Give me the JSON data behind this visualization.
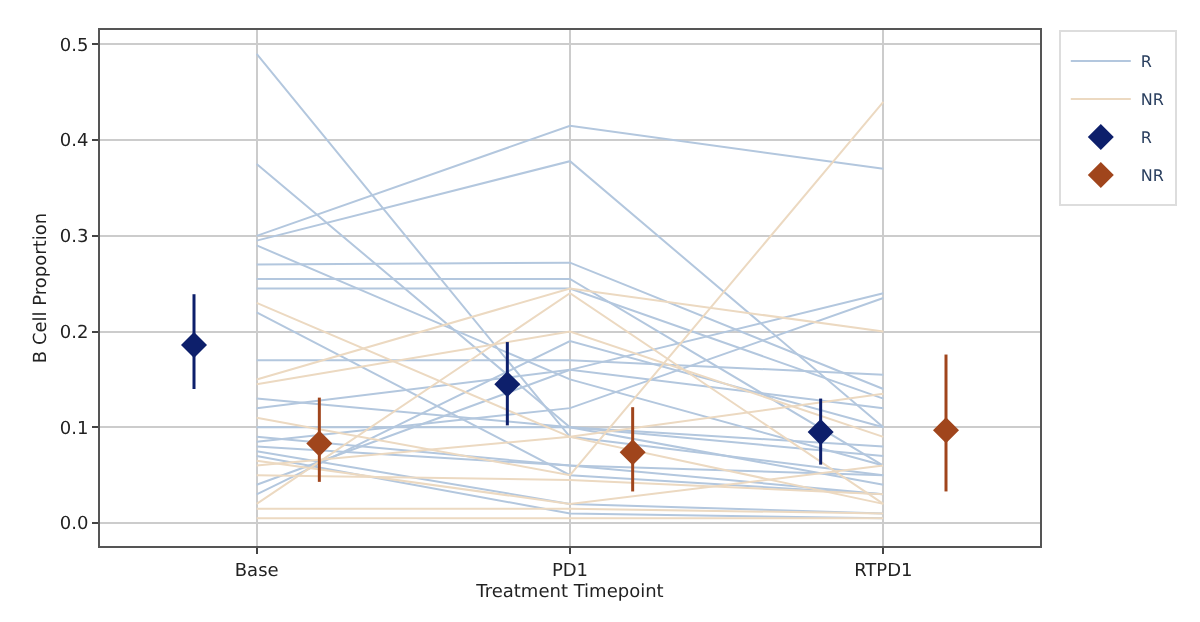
{
  "chart_data": {
    "type": "line",
    "xlabel": "Treatment Timepoint",
    "ylabel": "B Cell Proportion",
    "categories": [
      null,
      null,
      "Base",
      null,
      null,
      null,
      null,
      "PD1",
      null,
      null,
      null,
      null,
      "RTPD1",
      null,
      null
    ],
    "ylim": [
      -0.024,
      0.515
    ],
    "yticks": [
      {
        "value": 0,
        "label": "0.0"
      },
      0.1,
      0.2,
      0.3,
      0.4,
      0.5
    ],
    "grid": true,
    "legend": "top right",
    "marker": "none",
    "series": [
      {
        "name": "R",
        "color": "#b3c7de",
        "values": [
          null,
          null,
          0.49,
          null,
          null,
          null,
          null,
          0.09,
          null,
          null,
          null,
          null,
          0.05,
          null,
          null
        ]
      },
      {
        "color": "#b3c7de",
        "values": [
          null,
          null,
          0.375,
          null,
          null,
          null,
          null,
          0.1,
          null,
          null,
          null,
          null,
          0.04,
          null,
          null
        ]
      },
      {
        "color": "#b3c7de",
        "values": [
          null,
          null,
          0.3,
          null,
          null,
          null,
          null,
          0.415,
          null,
          null,
          null,
          null,
          0.37,
          null,
          null
        ]
      },
      {
        "color": "#b3c7de",
        "values": [
          null,
          null,
          0.295,
          null,
          null,
          null,
          null,
          0.378,
          null,
          null,
          null,
          null,
          0.1,
          null,
          null
        ]
      },
      {
        "color": "#b3c7de",
        "values": [
          null,
          null,
          0.29,
          null,
          null,
          null,
          null,
          0.15,
          null,
          null,
          null,
          null,
          0.06,
          null,
          null
        ]
      },
      {
        "color": "#b3c7de",
        "values": [
          null,
          null,
          0.27,
          null,
          null,
          null,
          null,
          0.272,
          null,
          null,
          null,
          null,
          0.14,
          null,
          null
        ]
      },
      {
        "color": "#b3c7de",
        "values": [
          null,
          null,
          0.255,
          null,
          null,
          null,
          null,
          0.255,
          null,
          null,
          null,
          null,
          0.06,
          null,
          null
        ]
      },
      {
        "color": "#b3c7de",
        "values": [
          null,
          null,
          0.245,
          null,
          null,
          null,
          null,
          0.245,
          null,
          null,
          null,
          null,
          0.13,
          null,
          null
        ]
      },
      {
        "color": "#b3c7de",
        "values": [
          null,
          null,
          0.22,
          null,
          null,
          null,
          null,
          0.05,
          null,
          null,
          null,
          null,
          0.03,
          null,
          null
        ]
      },
      {
        "color": "#b3c7de",
        "values": [
          null,
          null,
          0.17,
          null,
          null,
          null,
          null,
          0.17,
          null,
          null,
          null,
          null,
          0.155,
          null,
          null
        ]
      },
      {
        "color": "#b3c7de",
        "values": [
          null,
          null,
          0.13,
          null,
          null,
          null,
          null,
          0.1,
          null,
          null,
          null,
          null,
          0.07,
          null,
          null
        ]
      },
      {
        "color": "#b3c7de",
        "values": [
          null,
          null,
          0.12,
          null,
          null,
          null,
          null,
          0.16,
          null,
          null,
          null,
          null,
          0.24,
          null,
          null
        ]
      },
      {
        "color": "#b3c7de",
        "values": [
          null,
          null,
          0.1,
          null,
          null,
          null,
          null,
          0.1,
          null,
          null,
          null,
          null,
          0.08,
          null,
          null
        ]
      },
      {
        "color": "#b3c7de",
        "values": [
          null,
          null,
          0.09,
          null,
          null,
          null,
          null,
          0.06,
          null,
          null,
          null,
          null,
          0.05,
          null,
          null
        ]
      },
      {
        "color": "#b3c7de",
        "values": [
          null,
          null,
          0.085,
          null,
          null,
          null,
          null,
          0.12,
          null,
          null,
          null,
          null,
          0.235,
          null,
          null
        ]
      },
      {
        "color": "#b3c7de",
        "values": [
          null,
          null,
          0.08,
          null,
          null,
          null,
          null,
          0.06,
          null,
          null,
          null,
          null,
          0.03,
          null,
          null
        ]
      },
      {
        "color": "#b3c7de",
        "values": [
          null,
          null,
          0.075,
          null,
          null,
          null,
          null,
          0.02,
          null,
          null,
          null,
          null,
          0.01,
          null,
          null
        ]
      },
      {
        "color": "#b3c7de",
        "values": [
          null,
          null,
          0.04,
          null,
          null,
          null,
          null,
          0.16,
          null,
          null,
          null,
          null,
          0.12,
          null,
          null
        ]
      },
      {
        "color": "#b3c7de",
        "values": [
          null,
          null,
          0.03,
          null,
          null,
          null,
          null,
          0.19,
          null,
          null,
          null,
          null,
          0.1,
          null,
          null
        ]
      },
      {
        "color": "#b3c7de",
        "values": [
          null,
          null,
          0.07,
          null,
          null,
          null,
          null,
          0.01,
          null,
          null,
          null,
          null,
          0.005,
          null,
          null
        ]
      },
      {
        "name": "NR",
        "color": "#ecd9c1",
        "values": [
          null,
          null,
          0.23,
          null,
          null,
          null,
          null,
          0.09,
          null,
          null,
          null,
          null,
          0.02,
          null,
          null
        ]
      },
      {
        "color": "#ecd9c1",
        "values": [
          null,
          null,
          0.15,
          null,
          null,
          null,
          null,
          0.245,
          null,
          null,
          null,
          null,
          0.2,
          null,
          null
        ]
      },
      {
        "color": "#ecd9c1",
        "values": [
          null,
          null,
          0.145,
          null,
          null,
          null,
          null,
          0.2,
          null,
          null,
          null,
          null,
          0.09,
          null,
          null
        ]
      },
      {
        "color": "#ecd9c1",
        "values": [
          null,
          null,
          0.11,
          null,
          null,
          null,
          null,
          0.05,
          null,
          null,
          null,
          null,
          0.44,
          null,
          null
        ]
      },
      {
        "color": "#ecd9c1",
        "values": [
          null,
          null,
          0.06,
          null,
          null,
          null,
          null,
          0.09,
          null,
          null,
          null,
          null,
          0.135,
          null,
          null
        ]
      },
      {
        "color": "#ecd9c1",
        "values": [
          null,
          null,
          0.02,
          null,
          null,
          null,
          null,
          0.24,
          null,
          null,
          null,
          null,
          0.02,
          null,
          null
        ]
      },
      {
        "color": "#ecd9c1",
        "values": [
          null,
          null,
          0.015,
          null,
          null,
          null,
          null,
          0.015,
          null,
          null,
          null,
          null,
          0.01,
          null,
          null
        ]
      },
      {
        "color": "#ecd9c1",
        "values": [
          null,
          null,
          0.005,
          null,
          null,
          null,
          null,
          0.005,
          null,
          null,
          null,
          null,
          0.005,
          null,
          null
        ]
      },
      {
        "color": "#ecd9c1",
        "values": [
          null,
          null,
          0.05,
          null,
          null,
          null,
          null,
          0.045,
          null,
          null,
          null,
          null,
          0.03,
          null,
          null
        ]
      },
      {
        "color": "#ecd9c1",
        "values": [
          null,
          null,
          0.065,
          null,
          null,
          null,
          null,
          0.02,
          null,
          null,
          null,
          null,
          0.06,
          null,
          null
        ]
      },
      {
        "name": "R",
        "type": "scatter",
        "marker": "diamond",
        "color": "#0d1f6b",
        "values": [
          null,
          0.186,
          null,
          null,
          null,
          null,
          0.145,
          null,
          null,
          null,
          null,
          0.095,
          null,
          null,
          null
        ],
        "errors": [
          null,
          [
            0.14,
            0.239
          ],
          null,
          null,
          null,
          null,
          [
            0.102,
            0.189
          ],
          null,
          null,
          null,
          null,
          [
            0.061,
            0.13
          ],
          null,
          null,
          null
        ]
      },
      {
        "name": "NR",
        "type": "scatter",
        "marker": "diamond",
        "color": "#a0451c",
        "values": [
          null,
          null,
          null,
          0.083,
          null,
          null,
          null,
          null,
          0.074,
          null,
          null,
          null,
          null,
          0.097,
          null
        ],
        "errors": [
          null,
          null,
          null,
          [
            0.043,
            0.131
          ],
          null,
          null,
          null,
          null,
          [
            0.033,
            0.121
          ],
          null,
          null,
          null,
          null,
          [
            0.033,
            0.176
          ],
          null
        ]
      }
    ]
  }
}
